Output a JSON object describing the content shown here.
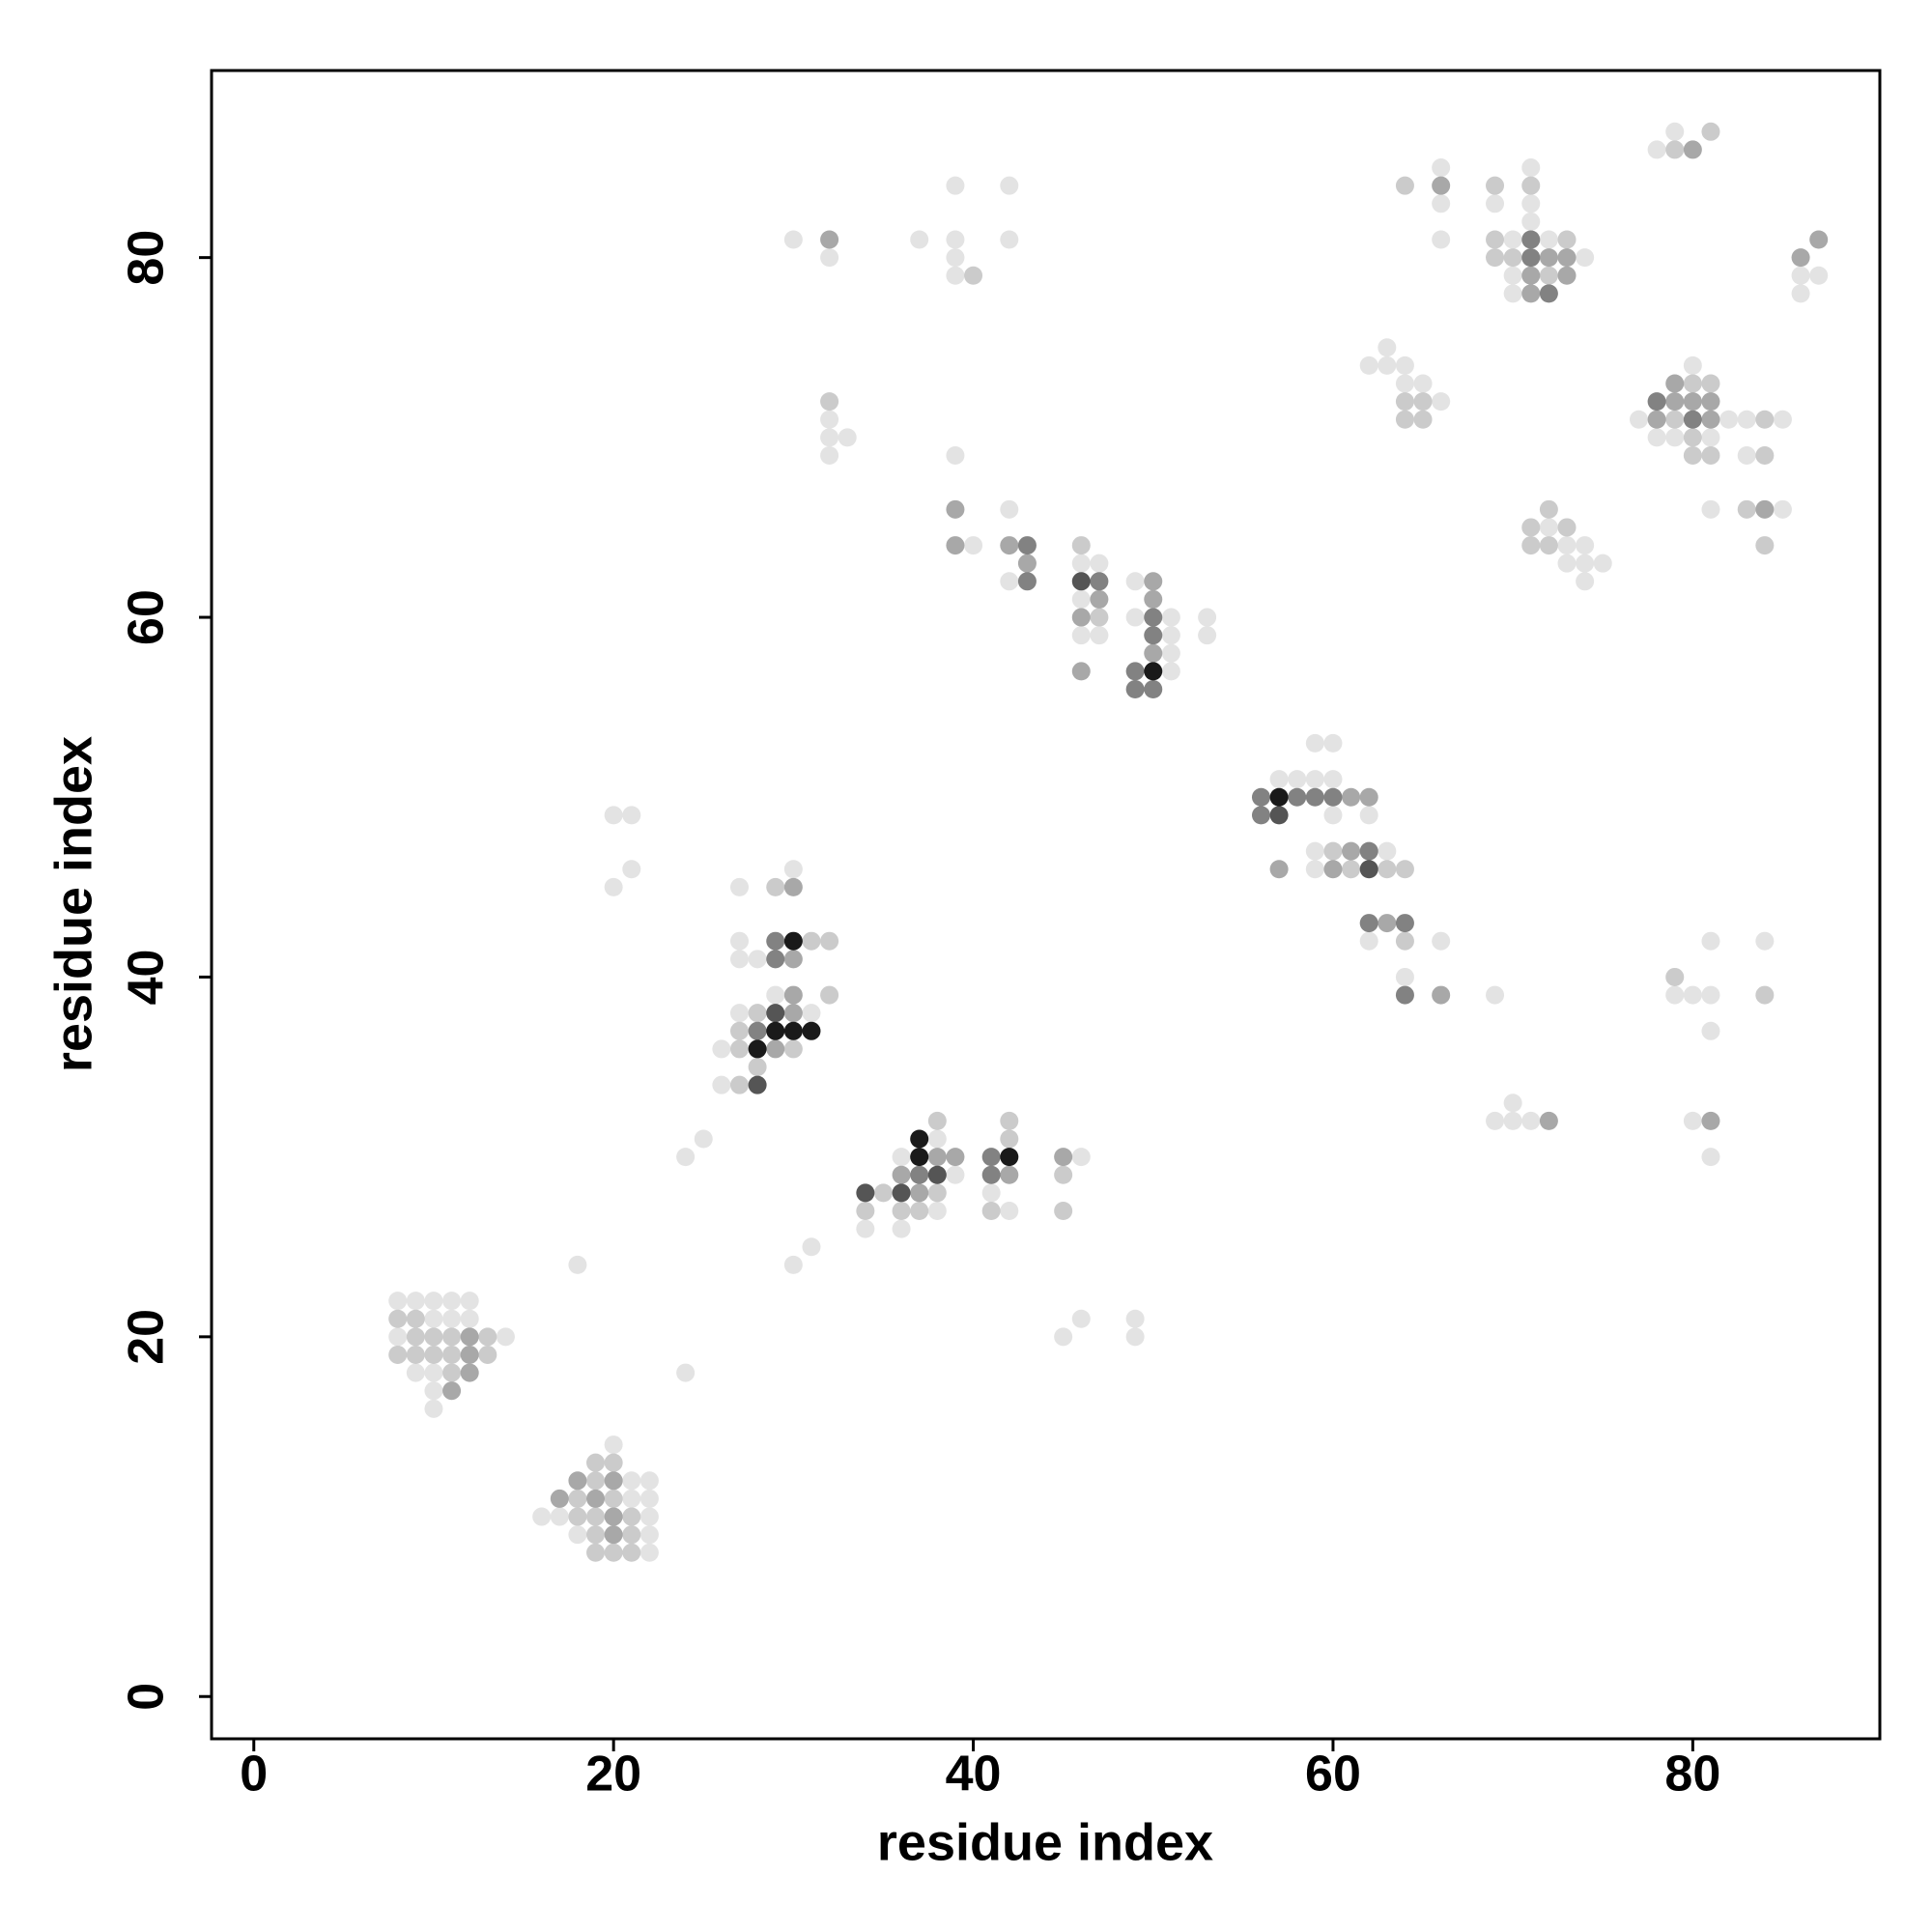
{
  "chart_data": {
    "type": "scatter",
    "x_label": "residue index",
    "y_label": "residue index",
    "xlim": [
      -2.35,
      90.4
    ],
    "ylim": [
      -2.35,
      90.4
    ],
    "xticks": [
      0,
      20,
      40,
      60,
      80
    ],
    "yticks": [
      0,
      20,
      40,
      60,
      80
    ],
    "grid": false,
    "series": [
      {
        "color": "#e3e3e3",
        "x": [
          8,
          9,
          10,
          11,
          12,
          10,
          11,
          12,
          8,
          14,
          9,
          10,
          10,
          10,
          20,
          21,
          22,
          21,
          22,
          16,
          17,
          22,
          18,
          22,
          22,
          18,
          24,
          24,
          25,
          30,
          31,
          45,
          46,
          49,
          49,
          20,
          20,
          21,
          21,
          30,
          27,
          27,
          27,
          28,
          29,
          27,
          31,
          26,
          26,
          38,
          36,
          46,
          39,
          41,
          38,
          42,
          34,
          36,
          30,
          32,
          32,
          32,
          33,
          32,
          37,
          39,
          39,
          39,
          39,
          42,
          42,
          39,
          40,
          42,
          42,
          46,
          47,
          49,
          46,
          49,
          51,
          53,
          46,
          47,
          51,
          53,
          51,
          51,
          59,
          60,
          57,
          58,
          59,
          60,
          60,
          62,
          59,
          63,
          59,
          62,
          66,
          64,
          69,
          70,
          69,
          70,
          71,
          63,
          62,
          63,
          64,
          64,
          65,
          66,
          66,
          66,
          66,
          71,
          69,
          71,
          71,
          70,
          72,
          74,
          70,
          70,
          72,
          73,
          74,
          73,
          74,
          75,
          74,
          80,
          77,
          82,
          83,
          85,
          78,
          79,
          81,
          83,
          81,
          85,
          78,
          79,
          86,
          87,
          86,
          79,
          80,
          81,
          81,
          81,
          84,
          80,
          81
        ],
        "y": [
          22,
          22,
          22,
          22,
          22,
          21,
          21,
          21,
          20,
          20,
          18,
          18,
          17,
          16,
          14,
          12,
          12,
          11,
          11,
          10,
          10,
          10,
          9,
          9,
          8,
          24,
          18,
          30,
          31,
          24,
          25,
          20,
          21,
          21,
          20,
          45,
          49,
          49,
          46,
          46,
          45,
          42,
          41,
          41,
          39,
          38,
          38,
          36,
          34,
          31,
          30,
          30,
          29,
          28,
          27,
          27,
          26,
          26,
          81,
          80,
          71,
          70,
          70,
          69,
          81,
          81,
          84,
          80,
          79,
          84,
          81,
          69,
          64,
          66,
          62,
          63,
          63,
          62,
          61,
          60,
          60,
          60,
          59,
          59,
          59,
          59,
          58,
          57,
          53,
          53,
          51,
          51,
          51,
          51,
          49,
          49,
          47,
          47,
          46,
          42,
          42,
          40,
          39,
          33,
          32,
          32,
          32,
          75,
          74,
          74,
          74,
          73,
          73,
          72,
          85,
          83,
          81,
          85,
          83,
          83,
          82,
          81,
          81,
          80,
          79,
          78,
          65,
          64,
          64,
          63,
          63,
          63,
          62,
          74,
          71,
          71,
          71,
          71,
          70,
          70,
          70,
          69,
          66,
          66,
          86,
          87,
          79,
          79,
          78,
          39,
          39,
          39,
          42,
          37,
          42,
          32,
          30
        ]
      },
      {
        "color": "#cbcbcb",
        "x": [
          8,
          9,
          9,
          10,
          11,
          13,
          8,
          9,
          10,
          11,
          13,
          11,
          19,
          20,
          19,
          18,
          20,
          18,
          19,
          21,
          19,
          21,
          19,
          20,
          21,
          29,
          31,
          32,
          32,
          28,
          27,
          27,
          30,
          28,
          27,
          38,
          42,
          42,
          45,
          35,
          38,
          34,
          36,
          37,
          41,
          45,
          32,
          40,
          46,
          47,
          60,
          61,
          63,
          64,
          64,
          64,
          65,
          64,
          65,
          64,
          69,
          71,
          69,
          73,
          69,
          70,
          72,
          72,
          71,
          73,
          71,
          72,
          80,
          81,
          79,
          84,
          80,
          80,
          81,
          84,
          83,
          84,
          79,
          81,
          79,
          84
        ],
        "y": [
          21,
          21,
          20,
          20,
          20,
          20,
          19,
          19,
          19,
          19,
          19,
          18,
          13,
          13,
          12,
          11,
          11,
          10,
          10,
          10,
          9,
          9,
          8,
          8,
          8,
          45,
          42,
          42,
          39,
          38,
          37,
          36,
          36,
          35,
          34,
          32,
          32,
          31,
          29,
          28,
          28,
          27,
          27,
          27,
          27,
          27,
          72,
          79,
          64,
          60,
          47,
          46,
          46,
          46,
          42,
          72,
          72,
          71,
          71,
          84,
          84,
          84,
          81,
          81,
          80,
          80,
          79,
          66,
          65,
          65,
          64,
          64,
          73,
          73,
          71,
          71,
          70,
          69,
          69,
          69,
          66,
          64,
          86,
          87,
          40,
          39
        ]
      },
      {
        "color": "#a8a8a8",
        "x": [
          12,
          12,
          12,
          11,
          18,
          20,
          17,
          19,
          20,
          20,
          30,
          30,
          30,
          30,
          29,
          38,
          39,
          45,
          36,
          42,
          37,
          32,
          39,
          39,
          42,
          43,
          50,
          47,
          50,
          46,
          50,
          46,
          61,
          62,
          61,
          57,
          60,
          63,
          66,
          72,
          66,
          72,
          73,
          71,
          73,
          71,
          79,
          79,
          80,
          81,
          78,
          81,
          84,
          80,
          86,
          87,
          81
        ],
        "y": [
          20,
          19,
          18,
          17,
          12,
          12,
          11,
          11,
          10,
          9,
          45,
          41,
          39,
          38,
          36,
          30,
          30,
          30,
          29,
          29,
          28,
          81,
          66,
          64,
          64,
          63,
          62,
          61,
          61,
          60,
          58,
          57,
          50,
          50,
          47,
          46,
          46,
          43,
          39,
          32,
          84,
          80,
          80,
          79,
          79,
          78,
          73,
          72,
          72,
          72,
          71,
          71,
          66,
          86,
          80,
          81,
          32
        ]
      },
      {
        "color": "#828282",
        "x": [
          29,
          29,
          28,
          41,
          37,
          41,
          43,
          43,
          47,
          50,
          50,
          49,
          49,
          50,
          56,
          58,
          59,
          60,
          56,
          62,
          62,
          64,
          64,
          71,
          71,
          72,
          78,
          80
        ],
        "y": [
          42,
          41,
          37,
          30,
          29,
          29,
          64,
          62,
          62,
          60,
          59,
          57,
          56,
          56,
          50,
          50,
          50,
          50,
          49,
          47,
          43,
          43,
          39,
          81,
          80,
          78,
          72,
          71
        ]
      },
      {
        "color": "#555555",
        "x": [
          29,
          28,
          38,
          34,
          36,
          46,
          57,
          62
        ],
        "y": [
          38,
          34,
          29,
          28,
          28,
          62,
          49,
          46
        ]
      },
      {
        "color": "#1a1a1a",
        "x": [
          30,
          29,
          30,
          31,
          28,
          37,
          37,
          42,
          50,
          57
        ],
        "y": [
          42,
          37,
          37,
          37,
          36,
          31,
          30,
          30,
          57,
          50
        ]
      }
    ]
  }
}
